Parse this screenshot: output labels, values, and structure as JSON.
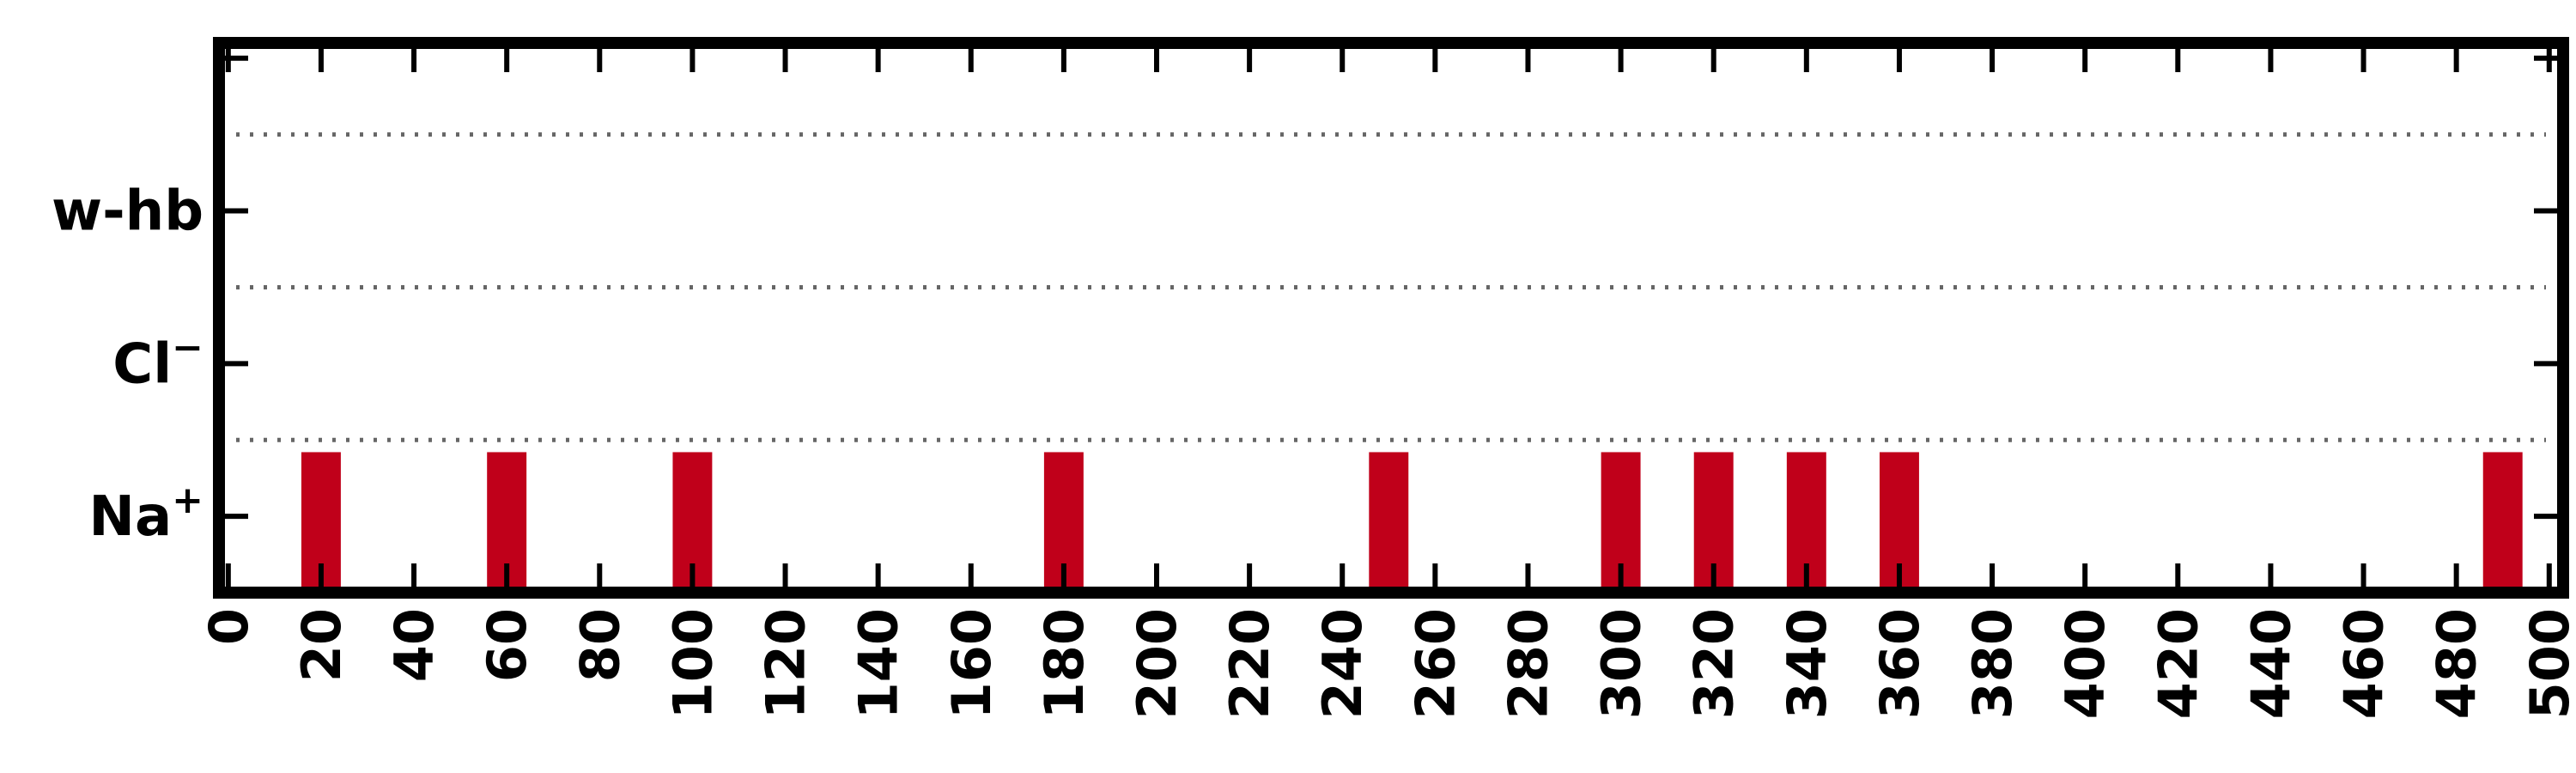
{
  "chart_data": {
    "type": "bar",
    "title": "",
    "xlabel": "",
    "ylabel": "",
    "xlim": [
      -2,
      503
    ],
    "ylim": [
      0,
      3.6
    ],
    "x_ticks": [
      "0",
      "20",
      "40",
      "60",
      "80",
      "100",
      "120",
      "140",
      "160",
      "180",
      "200",
      "220",
      "240",
      "260",
      "280",
      "300",
      "320",
      "340",
      "360",
      "380",
      "400",
      "420",
      "440",
      "460",
      "480",
      "500"
    ],
    "y_ticks": [
      {
        "base": "Na",
        "sup": "+",
        "y": 0.5
      },
      {
        "base": "Cl",
        "sup": "−",
        "y": 1.5
      },
      {
        "base": "w-hb",
        "sup": "",
        "y": 2.5
      }
    ],
    "grid": {
      "dotted_y": [
        1,
        2,
        3
      ]
    },
    "series": [
      {
        "category": "Na+",
        "color": "#c0001a",
        "x": [
          20,
          60,
          100,
          180,
          250,
          300,
          320,
          340,
          360,
          490
        ],
        "y_bottom": 0,
        "y_top": 0.92
      }
    ]
  }
}
